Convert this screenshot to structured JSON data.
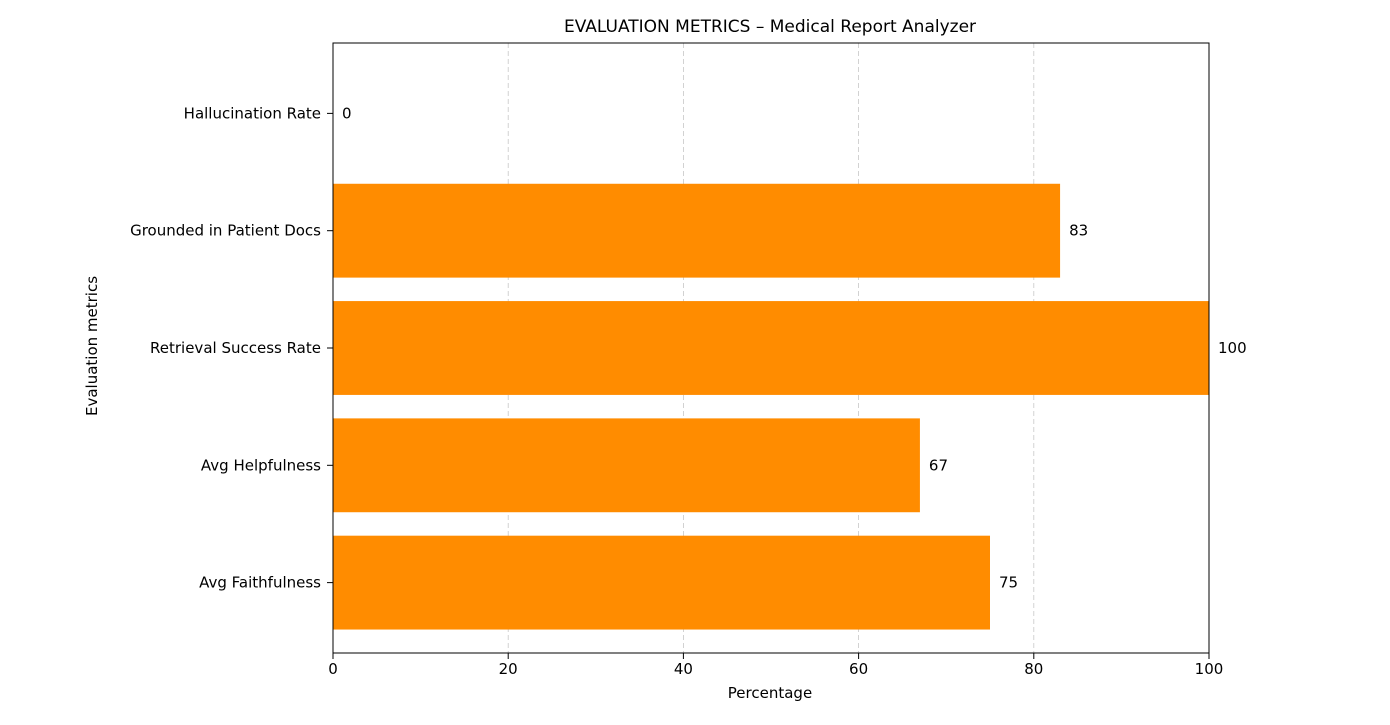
{
  "chart_data": {
    "type": "bar",
    "orientation": "horizontal",
    "title": "EVALUATION METRICS – Medical Report Analyzer",
    "xlabel": "Percentage",
    "ylabel": "Evaluation metrics",
    "categories": [
      "Avg Faithfulness",
      "Avg Helpfulness",
      "Retrieval Success Rate",
      "Grounded in Patient Docs",
      "Hallucination Rate"
    ],
    "values": [
      75,
      67,
      100,
      83,
      0
    ],
    "value_labels": [
      "75",
      "67",
      "100",
      "83",
      "0"
    ],
    "xlim": [
      0,
      100
    ],
    "xticks": [
      "0",
      "20",
      "40",
      "60",
      "80",
      "100"
    ],
    "grid": "vertical dashed",
    "bar_color": "#ff8c00"
  }
}
